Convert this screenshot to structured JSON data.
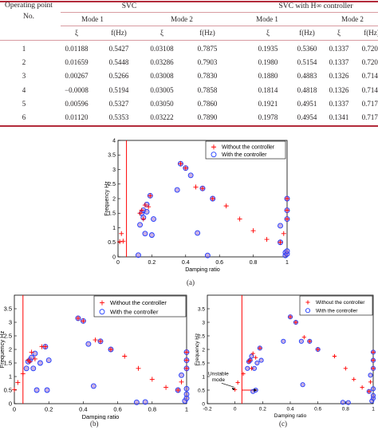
{
  "table": {
    "corner": "Operating point\nNo.",
    "group1": "SVC",
    "group2": "SVC with H∞ controller",
    "modes": [
      "Mode 1",
      "Mode 2",
      "Mode 1",
      "Mode 2"
    ],
    "cols": [
      "ξ",
      "f(Hz)",
      "ξ",
      "f(Hz)",
      "ξ",
      "f(Hz)",
      "ξ",
      "f(Hz)"
    ],
    "rows": [
      [
        "1",
        "0.01188",
        "0.5427",
        "0.03108",
        "0.7875",
        "0.1935",
        "0.5360",
        "0.1337",
        "0.7200"
      ],
      [
        "2",
        "0.01659",
        "0.5448",
        "0.03286",
        "0.7903",
        "0.1980",
        "0.5154",
        "0.1337",
        "0.7204"
      ],
      [
        "3",
        "0.00267",
        "0.5266",
        "0.03008",
        "0.7830",
        "0.1880",
        "0.4883",
        "0.1326",
        "0.7149"
      ],
      [
        "4",
        "−0.0008",
        "0.5194",
        "0.03005",
        "0.7858",
        "0.1814",
        "0.4818",
        "0.1326",
        "0.7143"
      ],
      [
        "5",
        "0.00596",
        "0.5327",
        "0.03050",
        "0.7860",
        "0.1921",
        "0.4951",
        "0.1337",
        "0.7175"
      ],
      [
        "6",
        "0.01120",
        "0.5353",
        "0.03222",
        "0.7890",
        "0.1978",
        "0.4954",
        "0.1341",
        "0.7173"
      ]
    ]
  },
  "legend": {
    "without": "Without the controller",
    "with": "With the controller"
  },
  "annotation": "Unstable\nmode",
  "captions": {
    "a": "(a)",
    "b": "(b)",
    "c": "(c)"
  },
  "colors": {
    "accent": "#c8102e",
    "circle": "#1f3cff",
    "line": "#ff0000"
  },
  "chart_data": [
    {
      "type": "scatter",
      "panel": "(a)",
      "xlabel": "Damping ratio",
      "ylabel": "Frequency Hz",
      "xlim": [
        0,
        1
      ],
      "ylim": [
        0,
        4
      ],
      "xticks": [
        "0",
        "0.2",
        "0.4",
        "0.6",
        "0.8",
        "1"
      ],
      "yticks": [
        "0",
        "0.5",
        "1",
        "1.5",
        "2",
        "2.5",
        "3",
        "3.5",
        "4"
      ],
      "vline_x": 0.05,
      "series": [
        {
          "name": "Without the controller",
          "marker": "plus",
          "points": [
            [
              0.01,
              0.52
            ],
            [
              0.02,
              0.8
            ],
            [
              0.03,
              0.54
            ],
            [
              0.13,
              1.5
            ],
            [
              0.14,
              1.6
            ],
            [
              0.15,
              1.3
            ],
            [
              0.16,
              1.78
            ],
            [
              0.18,
              1.72
            ],
            [
              0.19,
              2.1
            ],
            [
              0.37,
              3.2
            ],
            [
              0.4,
              3.05
            ],
            [
              0.46,
              2.4
            ],
            [
              0.5,
              2.35
            ],
            [
              0.56,
              2.0
            ],
            [
              0.64,
              1.75
            ],
            [
              0.72,
              1.3
            ],
            [
              0.8,
              0.9
            ],
            [
              0.88,
              0.6
            ],
            [
              0.96,
              0.5
            ],
            [
              0.98,
              0.8
            ],
            [
              1.0,
              1.3
            ],
            [
              1.0,
              1.6
            ],
            [
              1.0,
              2.0
            ]
          ]
        },
        {
          "name": "With the controller",
          "marker": "circle",
          "points": [
            [
              0.12,
              0.06
            ],
            [
              0.13,
              1.1
            ],
            [
              0.14,
              1.5
            ],
            [
              0.15,
              1.6
            ],
            [
              0.15,
              1.35
            ],
            [
              0.16,
              0.8
            ],
            [
              0.17,
              1.8
            ],
            [
              0.17,
              1.55
            ],
            [
              0.19,
              2.1
            ],
            [
              0.2,
              0.75
            ],
            [
              0.21,
              1.3
            ],
            [
              0.35,
              2.3
            ],
            [
              0.37,
              3.2
            ],
            [
              0.4,
              3.05
            ],
            [
              0.43,
              2.8
            ],
            [
              0.47,
              0.82
            ],
            [
              0.5,
              2.35
            ],
            [
              0.53,
              0.05
            ],
            [
              0.56,
              2.0
            ],
            [
              0.96,
              0.5
            ],
            [
              0.96,
              1.07
            ],
            [
              0.99,
              0.05
            ],
            [
              0.99,
              0.15
            ],
            [
              1.0,
              0.1
            ],
            [
              1.0,
              0.2
            ],
            [
              1.0,
              1.3
            ],
            [
              1.0,
              1.6
            ],
            [
              1.0,
              2.0
            ]
          ]
        }
      ]
    },
    {
      "type": "scatter",
      "panel": "(b)",
      "xlabel": "Damping ratio",
      "ylabel": "Frequency Hz",
      "xlim": [
        0,
        1
      ],
      "ylim": [
        0,
        4
      ],
      "xticks": [
        "0",
        "0.2",
        "0.4",
        "0.6",
        "0.8",
        "1"
      ],
      "yticks": [
        "0",
        "0.5",
        "1",
        "1.5",
        "2",
        "2.5",
        "3",
        "3.5"
      ],
      "vline_x": 0.05,
      "series": [
        {
          "name": "Without the controller",
          "marker": "plus",
          "points": [
            [
              0.0,
              0.52
            ],
            [
              0.02,
              0.78
            ],
            [
              0.05,
              1.1
            ],
            [
              0.08,
              1.6
            ],
            [
              0.09,
              1.55
            ],
            [
              0.1,
              1.9
            ],
            [
              0.12,
              1.65
            ],
            [
              0.16,
              2.1
            ],
            [
              0.18,
              2.1
            ],
            [
              0.37,
              3.15
            ],
            [
              0.4,
              3.05
            ],
            [
              0.47,
              2.35
            ],
            [
              0.5,
              2.3
            ],
            [
              0.56,
              2.0
            ],
            [
              0.64,
              1.75
            ],
            [
              0.72,
              1.3
            ],
            [
              0.8,
              0.9
            ],
            [
              0.88,
              0.6
            ],
            [
              0.95,
              0.5
            ],
            [
              0.97,
              0.8
            ],
            [
              1.0,
              1.3
            ],
            [
              1.0,
              1.6
            ],
            [
              1.0,
              1.9
            ]
          ]
        },
        {
          "name": "With the controller",
          "marker": "circle",
          "points": [
            [
              0.07,
              1.3
            ],
            [
              0.08,
              1.55
            ],
            [
              0.09,
              1.6
            ],
            [
              0.1,
              1.7
            ],
            [
              0.11,
              1.3
            ],
            [
              0.12,
              1.85
            ],
            [
              0.13,
              0.5
            ],
            [
              0.15,
              1.5
            ],
            [
              0.18,
              2.1
            ],
            [
              0.19,
              0.5
            ],
            [
              0.2,
              1.6
            ],
            [
              0.37,
              3.15
            ],
            [
              0.4,
              3.05
            ],
            [
              0.43,
              2.2
            ],
            [
              0.46,
              0.65
            ],
            [
              0.5,
              2.3
            ],
            [
              0.56,
              2.0
            ],
            [
              0.71,
              0.05
            ],
            [
              0.76,
              0.06
            ],
            [
              0.95,
              0.5
            ],
            [
              0.97,
              1.05
            ],
            [
              0.99,
              0.1
            ],
            [
              1.0,
              0.2
            ],
            [
              1.0,
              0.35
            ],
            [
              1.0,
              0.55
            ],
            [
              1.0,
              1.3
            ],
            [
              1.0,
              1.6
            ],
            [
              1.0,
              1.9
            ]
          ]
        }
      ]
    },
    {
      "type": "scatter",
      "panel": "(c)",
      "xlabel": "Damping ratio",
      "ylabel": "Frequency Hz",
      "xlim": [
        -0.2,
        1
      ],
      "ylim": [
        0,
        4
      ],
      "xticks": [
        "-0.2",
        "0",
        "0.2",
        "0.4",
        "0.6",
        "0.8",
        "1"
      ],
      "yticks": [
        "0",
        "0.5",
        "1",
        "1.5",
        "2",
        "2.5",
        "3",
        "3.5"
      ],
      "vline_x": 0.05,
      "series": [
        {
          "name": "Without the controller",
          "marker": "plus",
          "points": [
            [
              0.0,
              0.52
            ],
            [
              0.02,
              0.78
            ],
            [
              0.06,
              1.1
            ],
            [
              0.1,
              1.55
            ],
            [
              0.11,
              1.6
            ],
            [
              0.12,
              1.3
            ],
            [
              0.13,
              1.85
            ],
            [
              0.15,
              1.7
            ],
            [
              0.18,
              2.05
            ],
            [
              0.4,
              3.2
            ],
            [
              0.44,
              3.0
            ],
            [
              0.5,
              2.45
            ],
            [
              0.54,
              2.3
            ],
            [
              0.6,
              2.0
            ],
            [
              0.72,
              1.75
            ],
            [
              0.8,
              1.3
            ],
            [
              0.86,
              0.9
            ],
            [
              0.92,
              0.6
            ],
            [
              0.97,
              0.45
            ],
            [
              0.98,
              0.8
            ],
            [
              1.0,
              1.3
            ],
            [
              1.0,
              1.6
            ],
            [
              1.0,
              1.9
            ]
          ]
        },
        {
          "name": "With the controller",
          "marker": "circle",
          "points": [
            [
              0.09,
              1.3
            ],
            [
              0.1,
              1.55
            ],
            [
              0.11,
              1.6
            ],
            [
              0.12,
              1.75
            ],
            [
              0.13,
              0.45
            ],
            [
              0.14,
              1.3
            ],
            [
              0.15,
              0.5
            ],
            [
              0.16,
              1.5
            ],
            [
              0.18,
              2.05
            ],
            [
              0.19,
              1.6
            ],
            [
              0.35,
              2.3
            ],
            [
              0.4,
              3.2
            ],
            [
              0.44,
              3.0
            ],
            [
              0.48,
              2.3
            ],
            [
              0.49,
              0.7
            ],
            [
              0.54,
              2.3
            ],
            [
              0.6,
              2.0
            ],
            [
              0.78,
              0.05
            ],
            [
              0.82,
              0.04
            ],
            [
              0.97,
              0.45
            ],
            [
              0.98,
              1.05
            ],
            [
              0.99,
              0.1
            ],
            [
              1.0,
              0.2
            ],
            [
              1.0,
              0.3
            ],
            [
              1.0,
              0.55
            ],
            [
              1.0,
              1.3
            ],
            [
              1.0,
              1.6
            ],
            [
              1.0,
              1.9
            ]
          ]
        }
      ]
    }
  ]
}
